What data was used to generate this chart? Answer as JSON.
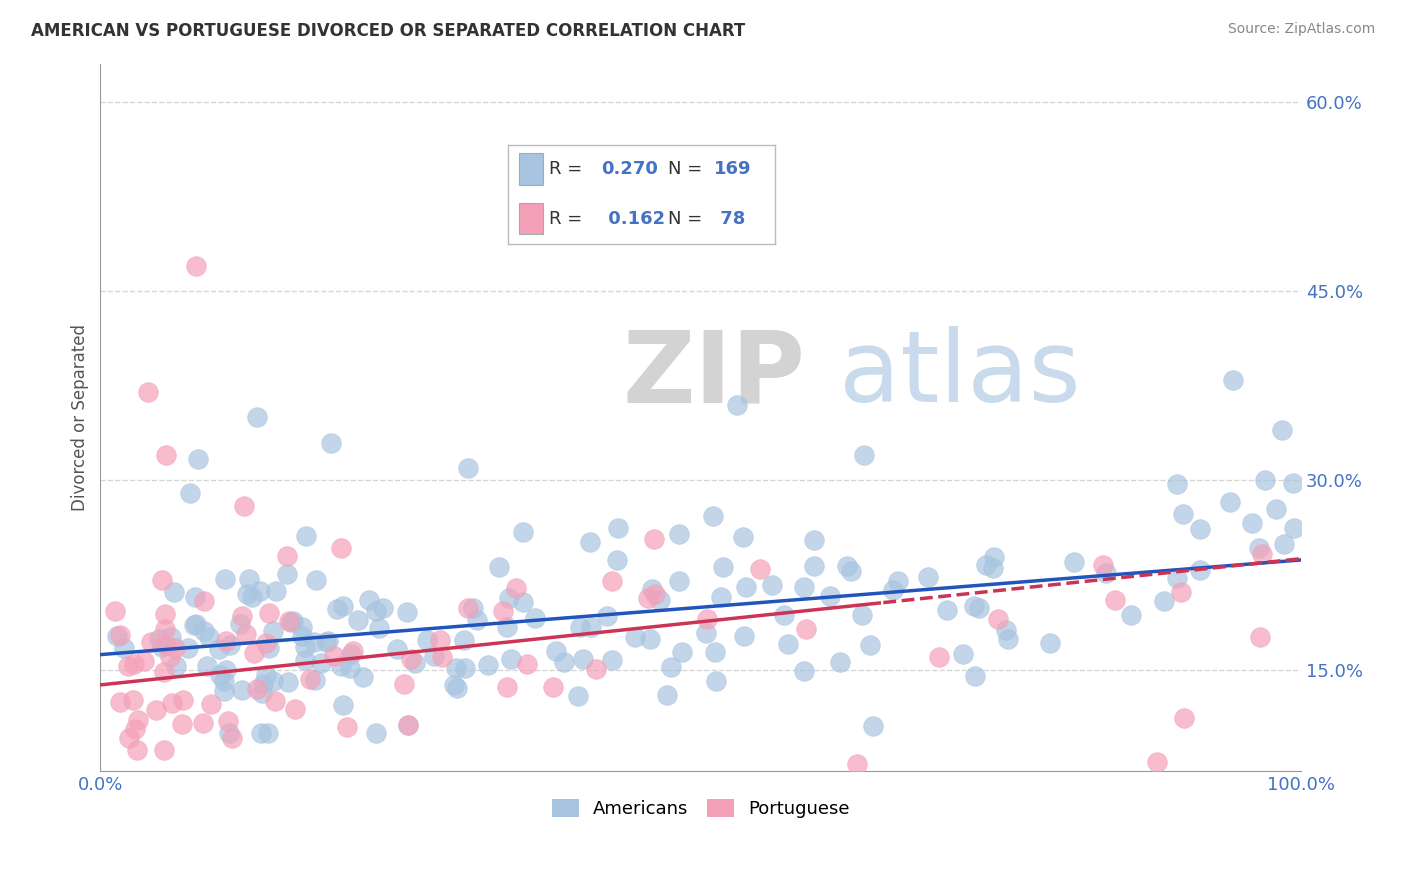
{
  "title": "AMERICAN VS PORTUGUESE DIVORCED OR SEPARATED CORRELATION CHART",
  "source": "Source: ZipAtlas.com",
  "ylabel": "Divorced or Separated",
  "xlim": [
    0.0,
    1.0
  ],
  "ylim": [
    0.07,
    0.63
  ],
  "xticks": [
    0.0,
    0.25,
    0.5,
    0.75,
    1.0
  ],
  "xticklabels": [
    "0.0%",
    "",
    "",
    "",
    "100.0%"
  ],
  "yticks": [
    0.15,
    0.3,
    0.45,
    0.6
  ],
  "yticklabels": [
    "15.0%",
    "30.0%",
    "45.0%",
    "60.0%"
  ],
  "american_color": "#a8c4e0",
  "portuguese_color": "#f4a0b8",
  "american_line_color": "#2255bb",
  "portuguese_line_color": "#cc3355",
  "legend_R_american": "0.270",
  "legend_N_american": "169",
  "legend_R_portuguese": "0.162",
  "legend_N_portuguese": "78",
  "watermark_ZIP": "ZIP",
  "watermark_atlas": "atlas",
  "background_color": "#ffffff",
  "grid_color": "#cccccc",
  "tick_color": "#4472c4",
  "title_color": "#333333",
  "source_color": "#888888",
  "ylabel_color": "#555555"
}
